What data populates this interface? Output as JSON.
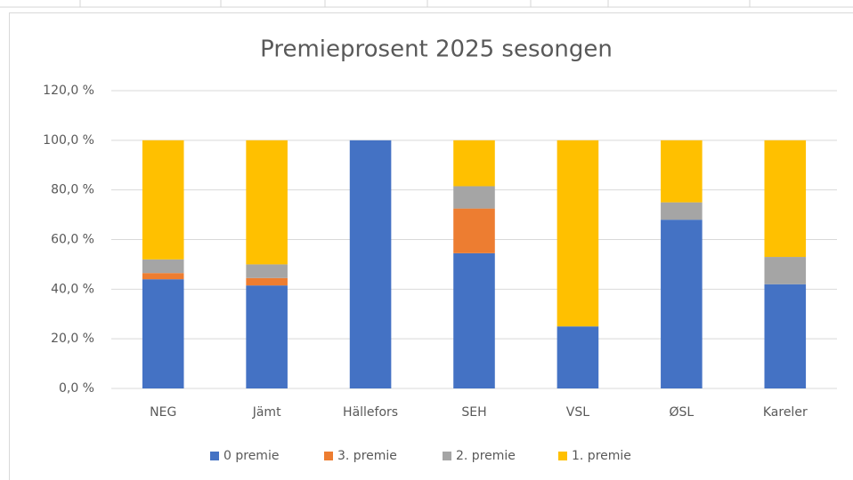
{
  "chart_data": {
    "type": "stacked-bar",
    "title": "Premieprosent 2025 sesongen",
    "categories": [
      "NEG",
      "Jämt",
      "Hällefors",
      "SEH",
      "VSL",
      "ØSL",
      "Kareler"
    ],
    "series": [
      {
        "name": "0 premie",
        "color": "#4472c4",
        "values": [
          44,
          41.5,
          100,
          54.5,
          25,
          68,
          42
        ]
      },
      {
        "name": "3. premie",
        "color": "#ed7d31",
        "values": [
          2.5,
          3,
          0,
          18,
          0,
          0,
          0
        ]
      },
      {
        "name": "2. premie",
        "color": "#a5a5a5",
        "values": [
          5.5,
          5.5,
          0,
          9,
          0,
          7,
          11
        ]
      },
      {
        "name": "1. premie",
        "color": "#ffc000",
        "values": [
          48,
          50,
          0,
          18.5,
          75,
          25,
          47
        ]
      }
    ],
    "ylim": [
      0,
      120
    ],
    "yticks": [
      {
        "value": 0,
        "label": "0,0 %"
      },
      {
        "value": 20,
        "label": "20,0 %"
      },
      {
        "value": 40,
        "label": "40,0 %"
      },
      {
        "value": 60,
        "label": "60,0 %"
      },
      {
        "value": 80,
        "label": "80,0 %"
      },
      {
        "value": 100,
        "label": "100,0 %"
      },
      {
        "value": 120,
        "label": "120,0 %"
      }
    ],
    "grid": true,
    "legend": "bottom"
  }
}
